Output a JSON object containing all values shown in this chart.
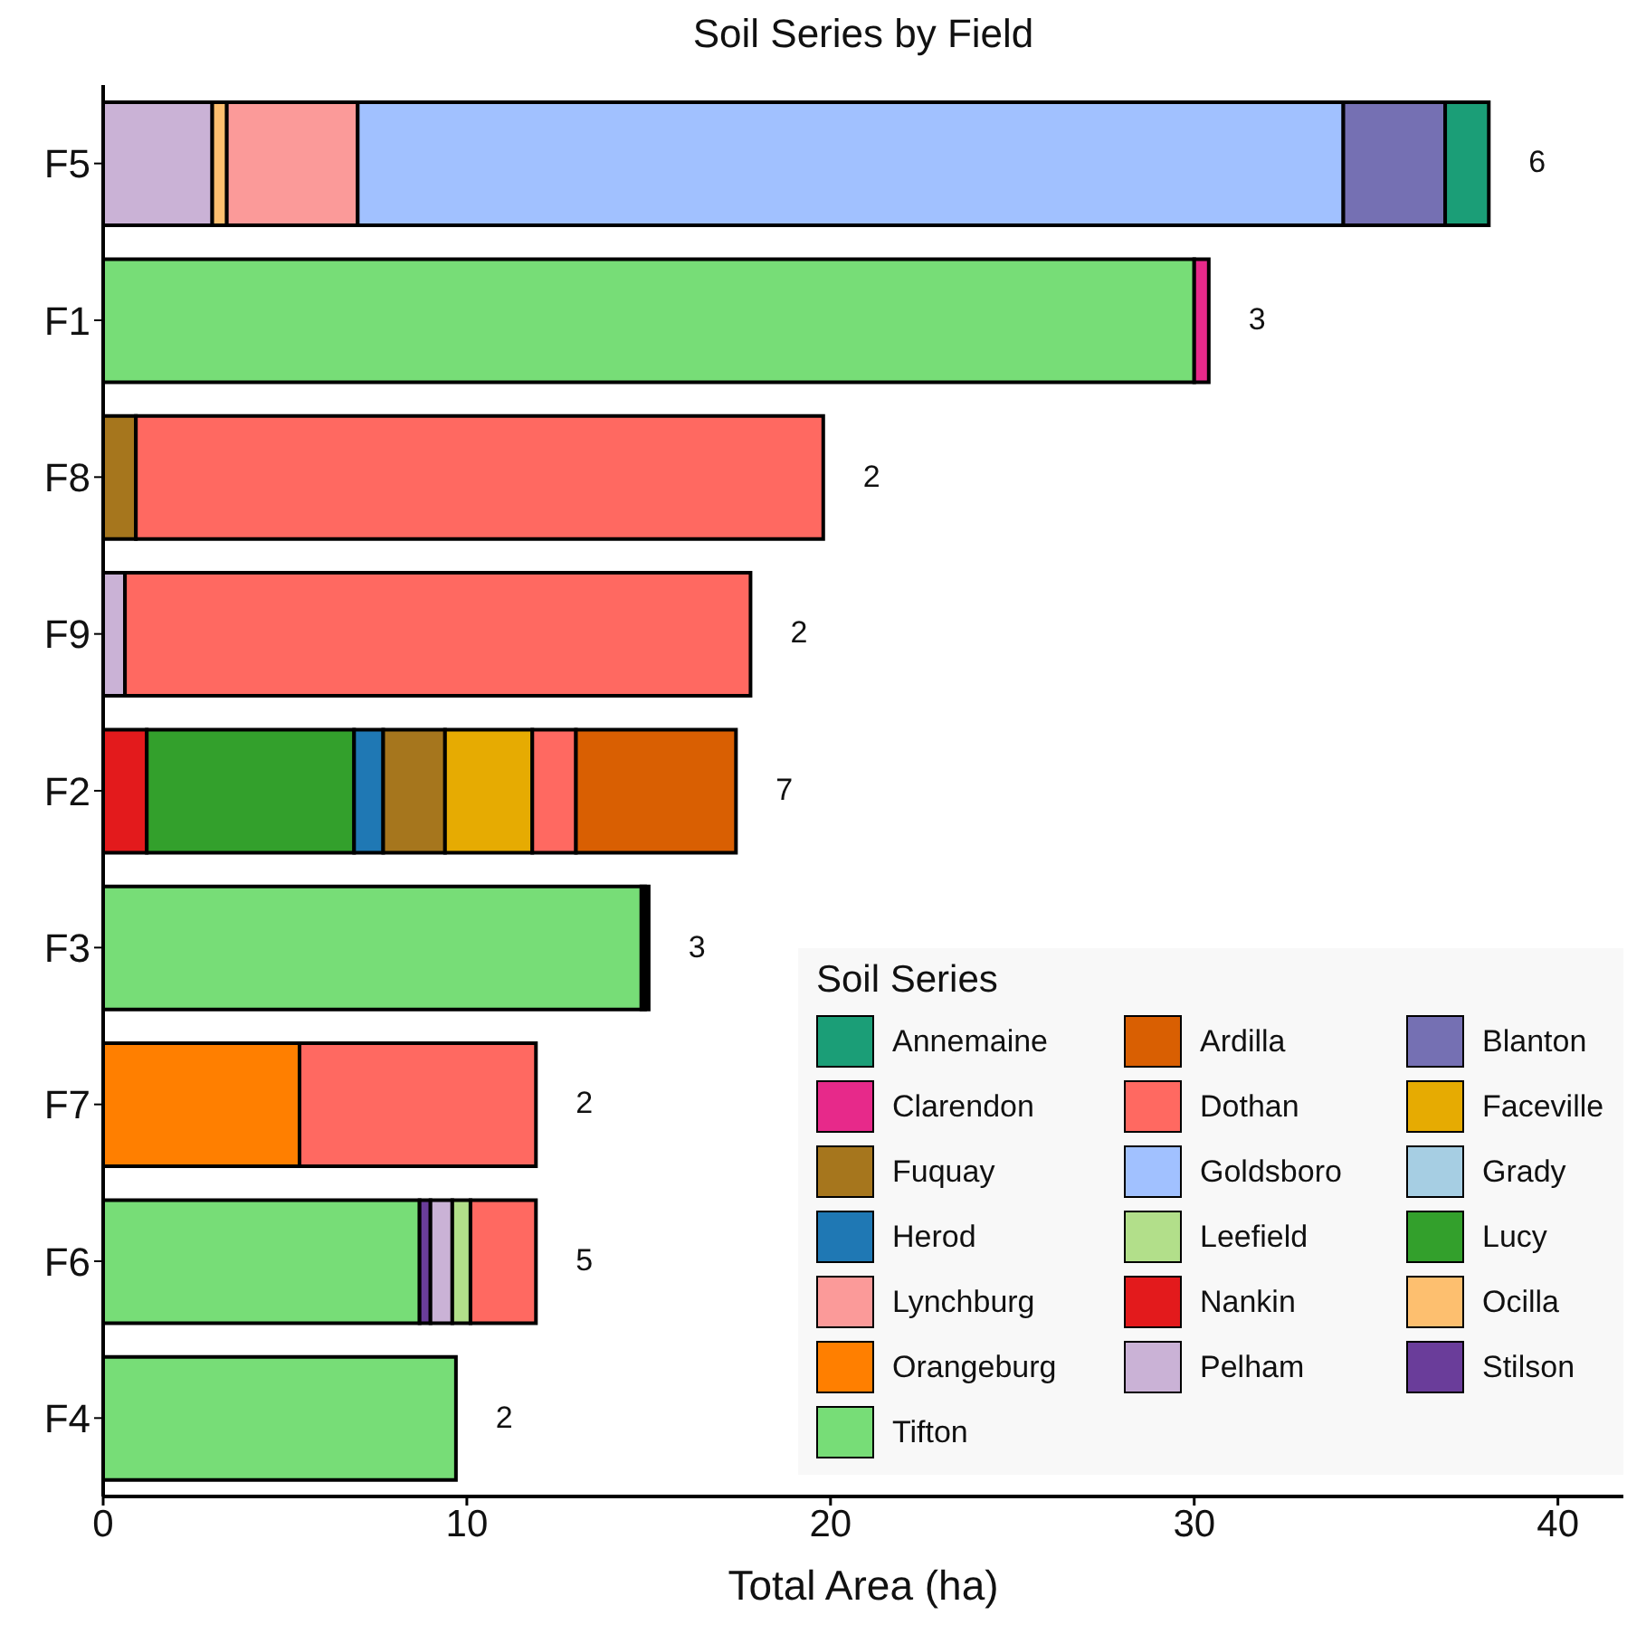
{
  "chart_data": {
    "type": "bar",
    "title": "Soil Series by Field",
    "xlabel": "Total Area (ha)",
    "legend_title": "Soil Series",
    "orientation": "horizontal",
    "stacked": true,
    "legend": "bottom right",
    "categories": [
      "F5",
      "F1",
      "F8",
      "F9",
      "F2",
      "F3",
      "F7",
      "F6",
      "F4"
    ],
    "xlim": [
      0,
      41.8
    ],
    "xticks": [
      0,
      10,
      20,
      30,
      40
    ],
    "series": [
      {
        "name": "Tifton",
        "color": "#77dd77",
        "values": [
          null,
          30.0,
          null,
          null,
          null,
          14.8,
          null,
          8.7,
          9.7
        ]
      },
      {
        "name": "Stilson",
        "color": "#6a3d9a",
        "values": [
          null,
          null,
          null,
          null,
          null,
          null,
          null,
          0.3,
          null
        ]
      },
      {
        "name": "Pelham",
        "color": "#cab2d6",
        "values": [
          3.0,
          null,
          null,
          0.6,
          null,
          null,
          null,
          0.6,
          null
        ]
      },
      {
        "name": "Orangeburg",
        "color": "#ff7f00",
        "values": [
          null,
          null,
          null,
          null,
          null,
          null,
          5.4,
          null,
          null
        ]
      },
      {
        "name": "Ocilla",
        "color": "#fdbf6f",
        "values": [
          0.4,
          null,
          null,
          null,
          null,
          null,
          null,
          null,
          null
        ]
      },
      {
        "name": "Nankin",
        "color": "#e31a1c",
        "values": [
          null,
          null,
          null,
          null,
          1.2,
          0.1,
          null,
          null,
          null
        ]
      },
      {
        "name": "Lynchburg",
        "color": "#fb9a99",
        "values": [
          3.6,
          null,
          null,
          null,
          null,
          null,
          null,
          null,
          null
        ]
      },
      {
        "name": "Lucy",
        "color": "#33a02c",
        "values": [
          null,
          null,
          null,
          null,
          5.7,
          null,
          null,
          null,
          null
        ]
      },
      {
        "name": "Leefield",
        "color": "#b2df8a",
        "values": [
          null,
          null,
          null,
          null,
          null,
          null,
          null,
          0.5,
          null
        ]
      },
      {
        "name": "Herod",
        "color": "#1f78b4",
        "values": [
          null,
          null,
          null,
          null,
          0.8,
          null,
          null,
          null,
          null
        ]
      },
      {
        "name": "Grady",
        "color": "#a6cee3",
        "values": [
          null,
          null,
          null,
          null,
          null,
          0.1,
          null,
          null,
          null
        ]
      },
      {
        "name": "Goldsboro",
        "color": "#a1c1ff",
        "values": [
          27.1,
          null,
          null,
          null,
          null,
          null,
          null,
          null,
          null
        ]
      },
      {
        "name": "Fuquay",
        "color": "#a6761d",
        "values": [
          null,
          null,
          0.9,
          null,
          1.7,
          null,
          null,
          null,
          null
        ]
      },
      {
        "name": "Faceville",
        "color": "#e6ab02",
        "values": [
          null,
          null,
          null,
          null,
          2.4,
          null,
          null,
          null,
          null
        ]
      },
      {
        "name": "Dothan",
        "color": "#ff6961",
        "values": [
          null,
          null,
          18.9,
          17.2,
          1.2,
          null,
          6.5,
          1.8,
          null
        ]
      },
      {
        "name": "Clarendon",
        "color": "#e7298a",
        "values": [
          null,
          0.4,
          null,
          null,
          null,
          null,
          null,
          null,
          null
        ]
      },
      {
        "name": "Blanton",
        "color": "#7570b3",
        "values": [
          2.8,
          null,
          null,
          null,
          null,
          null,
          null,
          null,
          null
        ]
      },
      {
        "name": "Ardilla",
        "color": "#d95f02",
        "values": [
          null,
          null,
          null,
          null,
          4.4,
          null,
          null,
          null,
          null
        ]
      },
      {
        "name": "Annemaine",
        "color": "#1b9e77",
        "values": [
          1.2,
          null,
          null,
          null,
          null,
          null,
          null,
          null,
          null
        ]
      }
    ],
    "annotations": [
      {
        "text": "6",
        "x": 38.1,
        "y": "F5"
      },
      {
        "text": "3",
        "x": 30.4,
        "y": "F1"
      },
      {
        "text": "2",
        "x": 19.8,
        "y": "F8"
      },
      {
        "text": "2",
        "x": 17.8,
        "y": "F9"
      },
      {
        "text": "7",
        "x": 17.4,
        "y": "F2"
      },
      {
        "text": "3",
        "x": 15.0,
        "y": "F3"
      },
      {
        "text": "2",
        "x": 11.9,
        "y": "F7"
      },
      {
        "text": "5",
        "x": 11.9,
        "y": "F6"
      },
      {
        "text": "2",
        "x": 9.7,
        "y": "F4"
      }
    ]
  }
}
